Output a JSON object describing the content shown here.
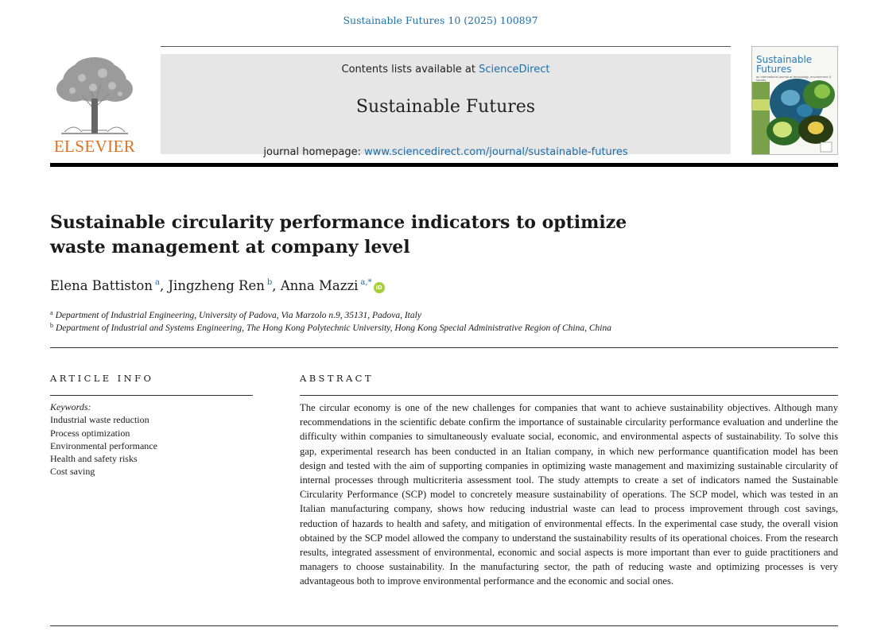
{
  "citation": "Sustainable Futures 10 (2025) 100897",
  "publisher": {
    "name": "ELSEVIER",
    "logo_icon": "elsevier-tree-icon"
  },
  "banner": {
    "contents_prefix": "Contents lists available at ",
    "contents_link": "ScienceDirect",
    "journal_title": "Sustainable Futures",
    "homepage_prefix": "journal homepage: ",
    "homepage_link": "www.sciencedirect.com/journal/sustainable-futures"
  },
  "cover": {
    "title_line1": "Sustainable",
    "title_line2": "Futures",
    "subtitle": "an international journal of technology, environment & society"
  },
  "article": {
    "title": "Sustainable circularity performance indicators to optimize waste management at company level",
    "authors": [
      {
        "name": "Elena Battiston",
        "sup": "a"
      },
      {
        "name": "Jingzheng Ren",
        "sup": "b"
      },
      {
        "name": "Anna Mazzi",
        "sup": "a,*"
      }
    ],
    "orcid_label": "iD",
    "affiliations": [
      {
        "sup": "a",
        "text": "Department of Industrial Engineering, University of Padova, Via Marzolo n.9, 35131, Padova, Italy"
      },
      {
        "sup": "b",
        "text": "Department of Industrial and Systems Engineering, The Hong Kong Polytechnic University, Hong Kong Special Administrative Region of China, China"
      }
    ]
  },
  "article_info": {
    "heading": "ARTICLE INFO",
    "keywords_label": "Keywords:",
    "keywords": [
      "Industrial waste reduction",
      "Process optimization",
      "Environmental performance",
      "Health and safety risks",
      "Cost saving"
    ]
  },
  "abstract": {
    "heading": "ABSTRACT",
    "text": "The circular economy is one of the new challenges for companies that want to achieve sustainability objectives. Although many recommendations in the scientific debate confirm the importance of sustainable circularity performance evaluation and underline the difficulty within companies to simultaneously evaluate social, eco­nomic, and environmental aspects of sustainability. To solve this gap, experimental research has been conducted in an Italian company, in which new performance quantification model has been design and tested with the aim of supporting companies in optimizing waste management and maximizing sustainable circularity of internal processes through multicriteria assessment tool. The study attempts to create a set of indicators named the Sustainable Circularity Performance (SCP) model to concretely measure sustainability of operations. The SCP model, which was tested in an Italian manufacturing company, shows how reducing industrial waste can lead to process improvement through cost savings, reduction of hazards to health and safety, and mitigation of envi­ronmental effects. In the experimental case study, the overall vision obtained by the SCP model allowed the company to understand the sustainability results of its operational choices. From the research results, integrated assessment of environmental, economic and social aspects is more important than ever to guide practitioners and managers to choose sustainability. In the manufacturing sector, the path of reducing waste and optimizing processes is very advantageous both to improve environmental performance and the economic and social ones."
  },
  "colors": {
    "link": "#1f6fa8",
    "elsevier_orange": "#e0701e",
    "banner_bg": "#e6e6e6",
    "orcid_green": "#a6ce39"
  }
}
